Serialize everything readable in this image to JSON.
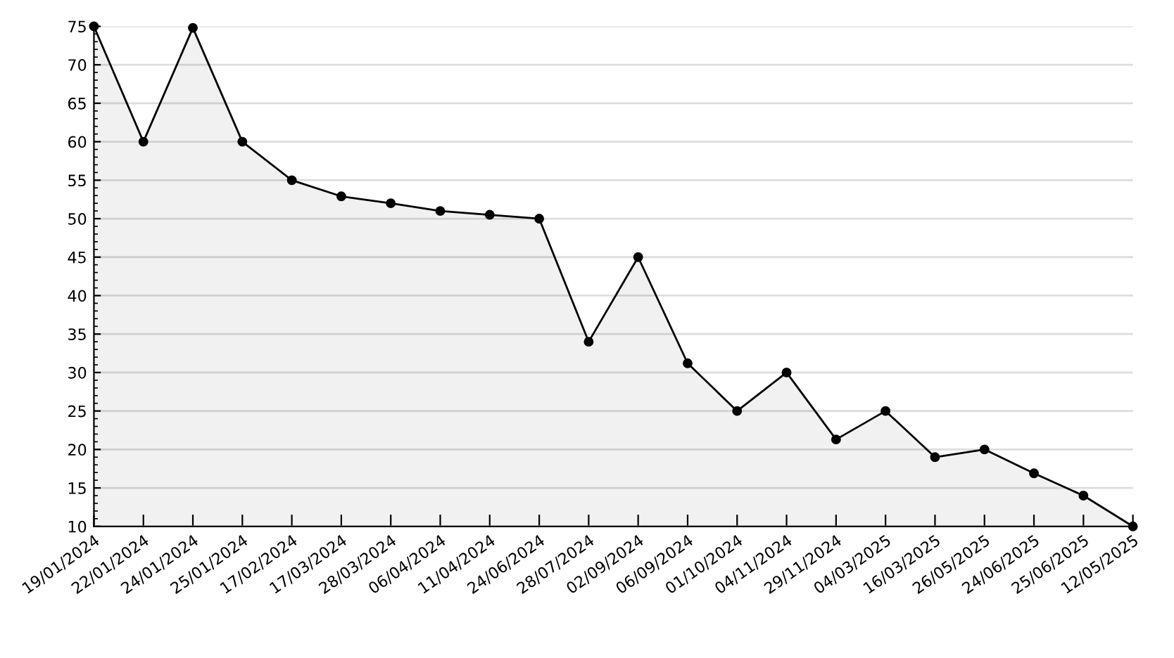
{
  "chart_data": {
    "type": "area",
    "color": "#000000",
    "marker": "circle",
    "grid": "y",
    "categories": [
      "19/01/2024",
      "22/01/2024",
      "24/01/2024",
      "25/01/2024",
      "17/02/2024",
      "17/03/2024",
      "28/03/2024",
      "06/04/2024",
      "11/04/2024",
      "24/06/2024",
      "28/07/2024",
      "02/09/2024",
      "06/09/2024",
      "01/10/2024",
      "04/11/2024",
      "29/11/2024",
      "04/03/2025",
      "16/03/2025",
      "26/05/2025",
      "24/06/2025",
      "25/06/2025",
      "12/05/2025"
    ],
    "values": [
      75,
      60,
      74.8,
      60,
      55,
      52.9,
      52,
      51,
      50.5,
      50,
      34,
      45,
      31.2,
      25,
      30,
      21.3,
      25,
      19,
      20,
      16.9,
      14,
      10
    ],
    "ylim": [
      10,
      75
    ],
    "yticks": [
      10,
      15,
      20,
      25,
      30,
      35,
      40,
      45,
      50,
      55,
      60,
      65,
      70,
      75
    ]
  }
}
